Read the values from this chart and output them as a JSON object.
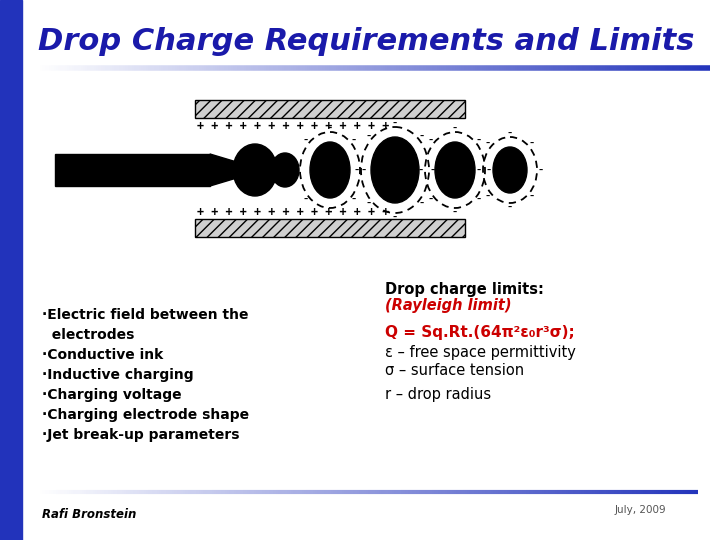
{
  "title": "Drop Charge Requirements and Limits",
  "title_color": "#1a1aaa",
  "title_fontsize": 22,
  "bg_color": "#ffffff",
  "left_bar_color": "#2233bb",
  "bullet_items": [
    "·Electric field between the",
    "  electrodes",
    "·Conductive ink",
    "·Inductive charging",
    "·Charging voltage",
    "·Charging electrode shape",
    "·Jet break-up parameters"
  ],
  "drop_charge_limits_title": "Drop charge limits:",
  "drop_charge_limits_italic": "(Rayleigh limit)",
  "formula": "Q = Sq.Rt.(64π²ε₀r³σ);",
  "formula_color": "#cc0000",
  "definitions": [
    "ε – free space permittivity",
    "σ – surface tension",
    "r – drop radius"
  ],
  "footer_left": "Rafi Bronstein",
  "footer_right": "July, 2009",
  "hatch_color": "#888888"
}
